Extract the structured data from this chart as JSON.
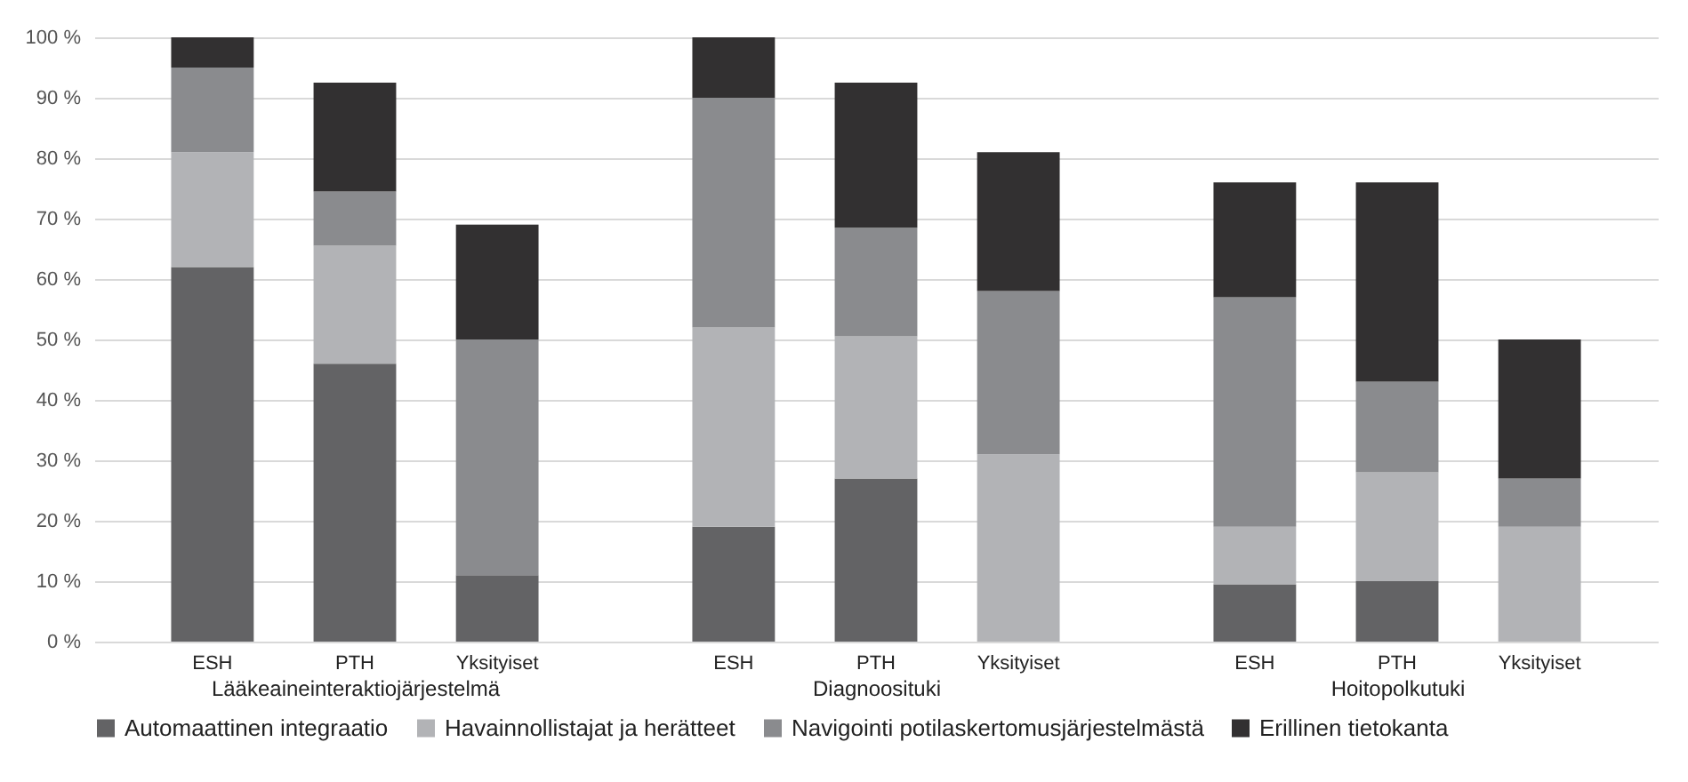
{
  "chart_data": [
    {
      "type": "bar",
      "stacked": true,
      "xlabel": "Lääkeaineinteraktiojärjestelmä",
      "categories": [
        "ESH",
        "PTH",
        "Yksityiset"
      ],
      "ylim": [
        0,
        100
      ],
      "yticks": [
        {
          "value": 0,
          "label": "0 %"
        },
        {
          "value": 10,
          "label": "10 %"
        },
        {
          "value": 20,
          "label": "20 %"
        },
        {
          "value": 30,
          "label": "30 %"
        },
        {
          "value": 40,
          "label": "40 %"
        },
        {
          "value": 50,
          "label": "50 %"
        },
        {
          "value": 60,
          "label": "60 %"
        },
        {
          "value": 70,
          "label": "70 %"
        },
        {
          "value": 80,
          "label": "80 %"
        },
        {
          "value": 90,
          "label": "90 %"
        },
        {
          "value": 100,
          "label": "100 %"
        }
      ],
      "grid": "y",
      "legend": "bottom",
      "series": [
        {
          "name": "Automaattinen integraatio",
          "color": "#636365",
          "values": [
            62,
            46,
            11
          ]
        },
        {
          "name": "Havainnollistajat ja herätteet",
          "color": "#b2b3b6",
          "values": [
            19,
            19.5,
            0
          ]
        },
        {
          "name": "Navigointi potilaskertomusjärjestelmästä",
          "color": "#8a8b8e",
          "values": [
            14,
            9,
            39
          ]
        },
        {
          "name": "Erillinen tietokanta",
          "color": "#323031",
          "values": [
            5,
            18,
            19
          ]
        }
      ]
    },
    {
      "type": "bar",
      "stacked": true,
      "xlabel": "Diagnoosituki",
      "categories": [
        "ESH",
        "PTH",
        "Yksityiset"
      ],
      "ylim": [
        0,
        100
      ],
      "yticks": [
        0,
        10,
        20,
        30,
        40,
        50,
        60,
        70,
        80,
        90,
        100
      ],
      "grid": "y",
      "tick_labels": "x",
      "series": [
        {
          "name": "Automaattinen integraatio",
          "color": "#636365",
          "values": [
            19,
            27,
            0
          ]
        },
        {
          "name": "Havainnollistajat ja herätteet",
          "color": "#b2b3b6",
          "values": [
            33,
            23.5,
            31
          ]
        },
        {
          "name": "Navigointi potilaskertomusjärjestelmästä",
          "color": "#8a8b8e",
          "values": [
            38,
            18,
            27
          ]
        },
        {
          "name": "Erillinen tietokanta",
          "color": "#323031",
          "values": [
            10,
            24,
            23
          ]
        }
      ]
    },
    {
      "type": "bar",
      "stacked": true,
      "xlabel": "Hoitopolkutuki",
      "categories": [
        "ESH",
        "PTH",
        "Yksityiset"
      ],
      "ylim": [
        0,
        100
      ],
      "yticks": [
        0,
        10,
        20,
        30,
        40,
        50,
        60,
        70,
        80,
        90,
        100
      ],
      "grid": "y",
      "tick_labels": "x",
      "series": [
        {
          "name": "Automaattinen integraatio",
          "color": "#636365",
          "values": [
            9.5,
            10,
            0
          ]
        },
        {
          "name": "Havainnollistajat ja herätteet",
          "color": "#b2b3b6",
          "values": [
            9.5,
            18,
            19
          ]
        },
        {
          "name": "Navigointi potilaskertomusjärjestelmästä",
          "color": "#8a8b8e",
          "values": [
            38,
            15,
            8
          ]
        },
        {
          "name": "Erillinen tietokanta",
          "color": "#323031",
          "values": [
            19,
            33,
            23
          ]
        }
      ]
    }
  ]
}
